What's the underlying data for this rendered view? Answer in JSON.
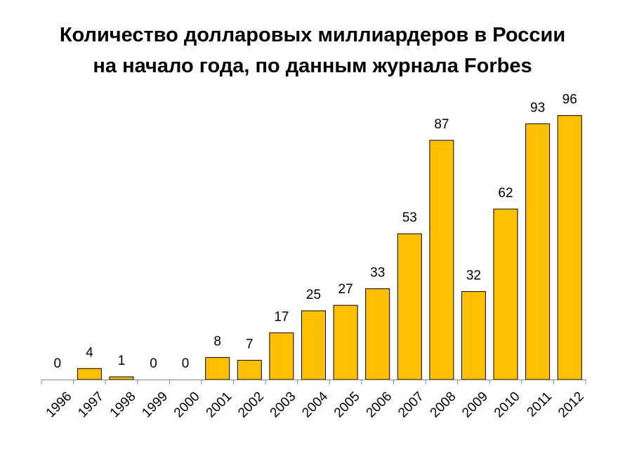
{
  "chart_data": {
    "type": "bar",
    "title_lines": [
      "Количество долларовых миллиардеров в России",
      "на начало года, по данным журнала Forbes"
    ],
    "categories": [
      "1996",
      "1997",
      "1998",
      "1999",
      "2000",
      "2001",
      "2002",
      "2003",
      "2004",
      "2005",
      "2006",
      "2007",
      "2008",
      "2009",
      "2010",
      "2011",
      "2012"
    ],
    "values": [
      0,
      4,
      1,
      0,
      0,
      8,
      7,
      17,
      25,
      27,
      33,
      53,
      87,
      32,
      62,
      93,
      96
    ],
    "ylim": [
      0,
      100
    ],
    "xlabel": "",
    "ylabel": "",
    "data_labels": true,
    "grid": false,
    "bar_color": "#FFC000",
    "bar_edge_color": "#000000"
  }
}
